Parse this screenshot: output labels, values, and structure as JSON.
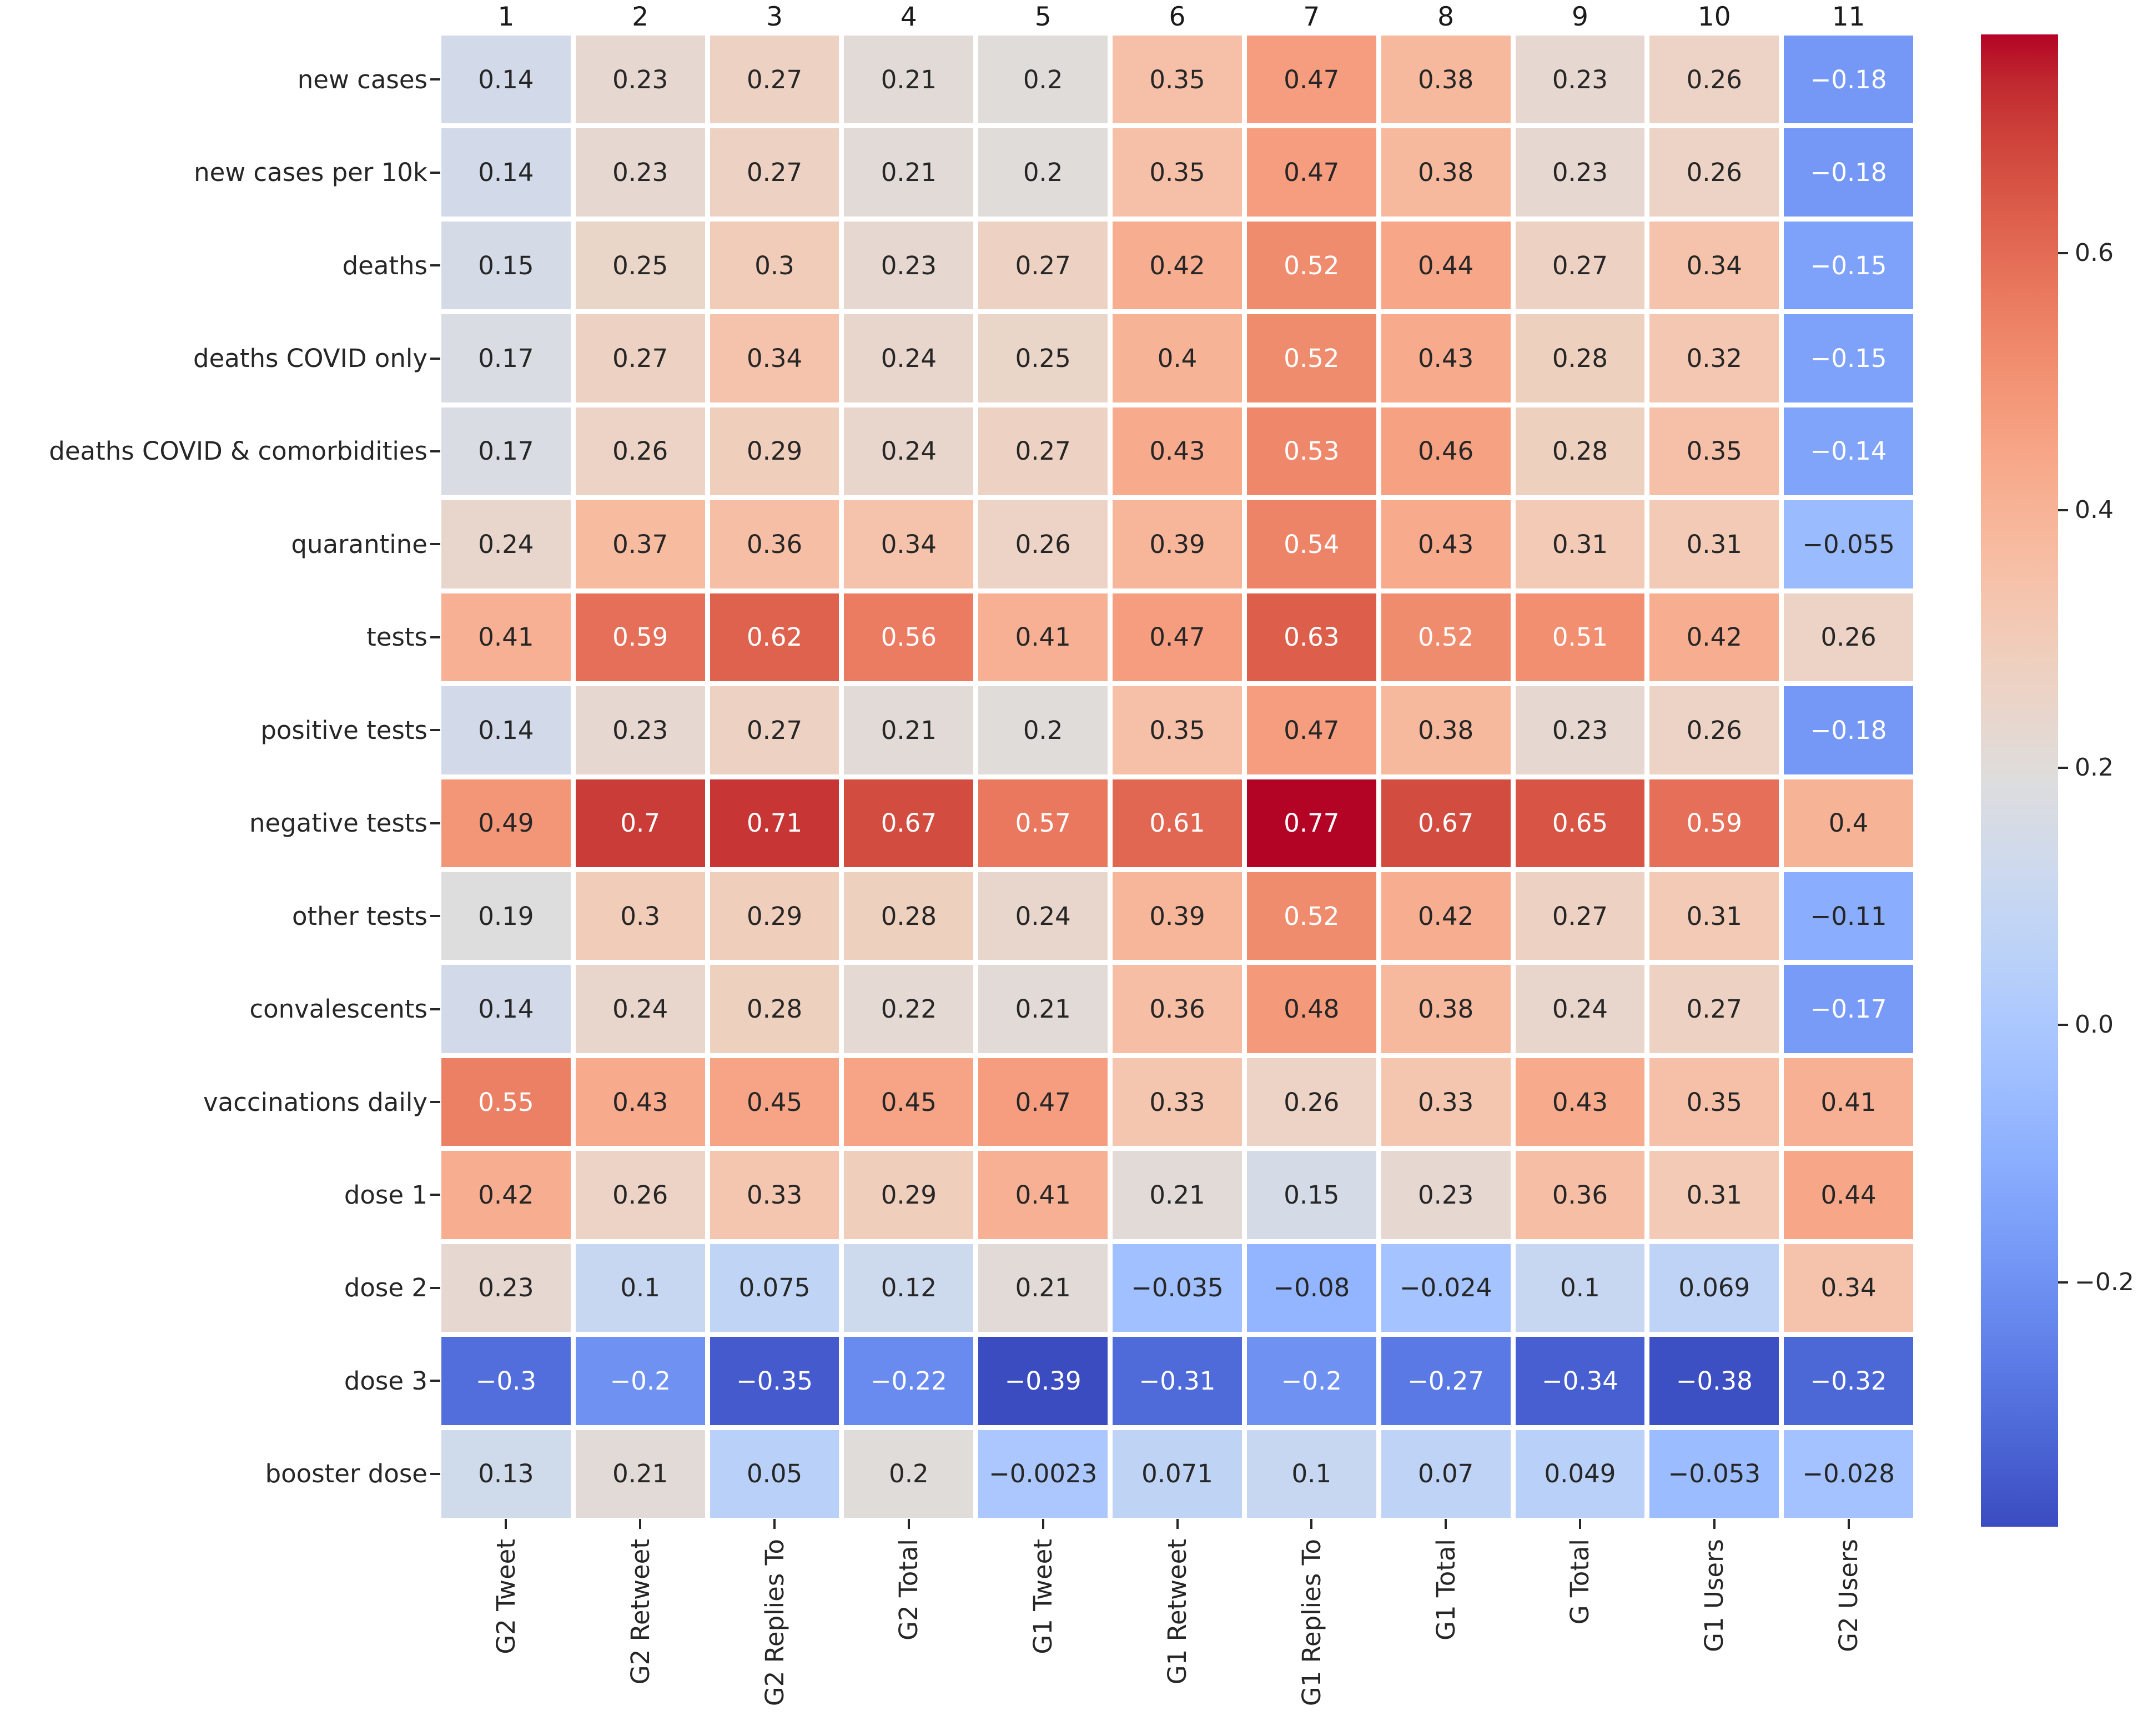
{
  "chart_data": {
    "type": "heatmap",
    "title": "",
    "xlabel": "",
    "ylabel": "",
    "colormap": "coolwarm",
    "grid": false,
    "rows": [
      "new cases",
      "new cases per 10k",
      "deaths",
      "deaths COVID only",
      "deaths COVID & comorbidities",
      "quarantine",
      "tests",
      "positive tests",
      "negative tests",
      "other tests",
      "convalescents",
      "vaccinations daily",
      "dose 1",
      "dose 2",
      "dose 3",
      "booster dose"
    ],
    "columns_top": [
      "1",
      "2",
      "3",
      "4",
      "5",
      "6",
      "7",
      "8",
      "9",
      "10",
      "11"
    ],
    "columns_bottom": [
      "G2 Tweet",
      "G2 Retweet",
      "G2 Replies To",
      "G2 Total",
      "G1 Tweet",
      "G1 Retweet",
      "G1 Replies To",
      "G1 Total",
      "G Total",
      "G1 Users",
      "G2 Users"
    ],
    "values": [
      [
        "0.14",
        "0.23",
        "0.27",
        "0.21",
        "0.2",
        "0.35",
        "0.47",
        "0.38",
        "0.23",
        "0.26",
        "-0.18"
      ],
      [
        "0.14",
        "0.23",
        "0.27",
        "0.21",
        "0.2",
        "0.35",
        "0.47",
        "0.38",
        "0.23",
        "0.26",
        "-0.18"
      ],
      [
        "0.15",
        "0.25",
        "0.3",
        "0.23",
        "0.27",
        "0.42",
        "0.52",
        "0.44",
        "0.27",
        "0.34",
        "-0.15"
      ],
      [
        "0.17",
        "0.27",
        "0.34",
        "0.24",
        "0.25",
        "0.4",
        "0.52",
        "0.43",
        "0.28",
        "0.32",
        "-0.15"
      ],
      [
        "0.17",
        "0.26",
        "0.29",
        "0.24",
        "0.27",
        "0.43",
        "0.53",
        "0.46",
        "0.28",
        "0.35",
        "-0.14"
      ],
      [
        "0.24",
        "0.37",
        "0.36",
        "0.34",
        "0.26",
        "0.39",
        "0.54",
        "0.43",
        "0.31",
        "0.31",
        "-0.055"
      ],
      [
        "0.41",
        "0.59",
        "0.62",
        "0.56",
        "0.41",
        "0.47",
        "0.63",
        "0.52",
        "0.51",
        "0.42",
        "0.26"
      ],
      [
        "0.14",
        "0.23",
        "0.27",
        "0.21",
        "0.2",
        "0.35",
        "0.47",
        "0.38",
        "0.23",
        "0.26",
        "-0.18"
      ],
      [
        "0.49",
        "0.7",
        "0.71",
        "0.67",
        "0.57",
        "0.61",
        "0.77",
        "0.67",
        "0.65",
        "0.59",
        "0.4"
      ],
      [
        "0.19",
        "0.3",
        "0.29",
        "0.28",
        "0.24",
        "0.39",
        "0.52",
        "0.42",
        "0.27",
        "0.31",
        "-0.11"
      ],
      [
        "0.14",
        "0.24",
        "0.28",
        "0.22",
        "0.21",
        "0.36",
        "0.48",
        "0.38",
        "0.24",
        "0.27",
        "-0.17"
      ],
      [
        "0.55",
        "0.43",
        "0.45",
        "0.45",
        "0.47",
        "0.33",
        "0.26",
        "0.33",
        "0.43",
        "0.35",
        "0.41"
      ],
      [
        "0.42",
        "0.26",
        "0.33",
        "0.29",
        "0.41",
        "0.21",
        "0.15",
        "0.23",
        "0.36",
        "0.31",
        "0.44"
      ],
      [
        "0.23",
        "0.1",
        "0.075",
        "0.12",
        "0.21",
        "-0.035",
        "-0.08",
        "-0.024",
        "0.1",
        "0.069",
        "0.34"
      ],
      [
        "-0.3",
        "-0.2",
        "-0.35",
        "-0.22",
        "-0.39",
        "-0.31",
        "-0.2",
        "-0.27",
        "-0.34",
        "-0.38",
        "-0.32"
      ],
      [
        "0.13",
        "0.21",
        "0.05",
        "0.2",
        "-0.0023",
        "0.071",
        "0.1",
        "0.07",
        "0.049",
        "-0.053",
        "-0.028"
      ]
    ],
    "vmin": -0.39,
    "vmax": 0.77,
    "colorbar": {
      "position": "right",
      "tick_labels": [
        "0.6",
        "0.4",
        "0.2",
        "0.0",
        "-0.2"
      ],
      "tick_values": [
        0.6,
        0.4,
        0.2,
        0.0,
        -0.2
      ]
    }
  },
  "colors": {
    "background": "#ffffff",
    "gridline": "#ffffff",
    "annotation_dark": "#262626",
    "annotation_light": "#ffffff",
    "tick": "#262626",
    "colormap_low": "#3b4cc0",
    "colormap_mid": "#dddddd",
    "colormap_high": "#b40426"
  }
}
